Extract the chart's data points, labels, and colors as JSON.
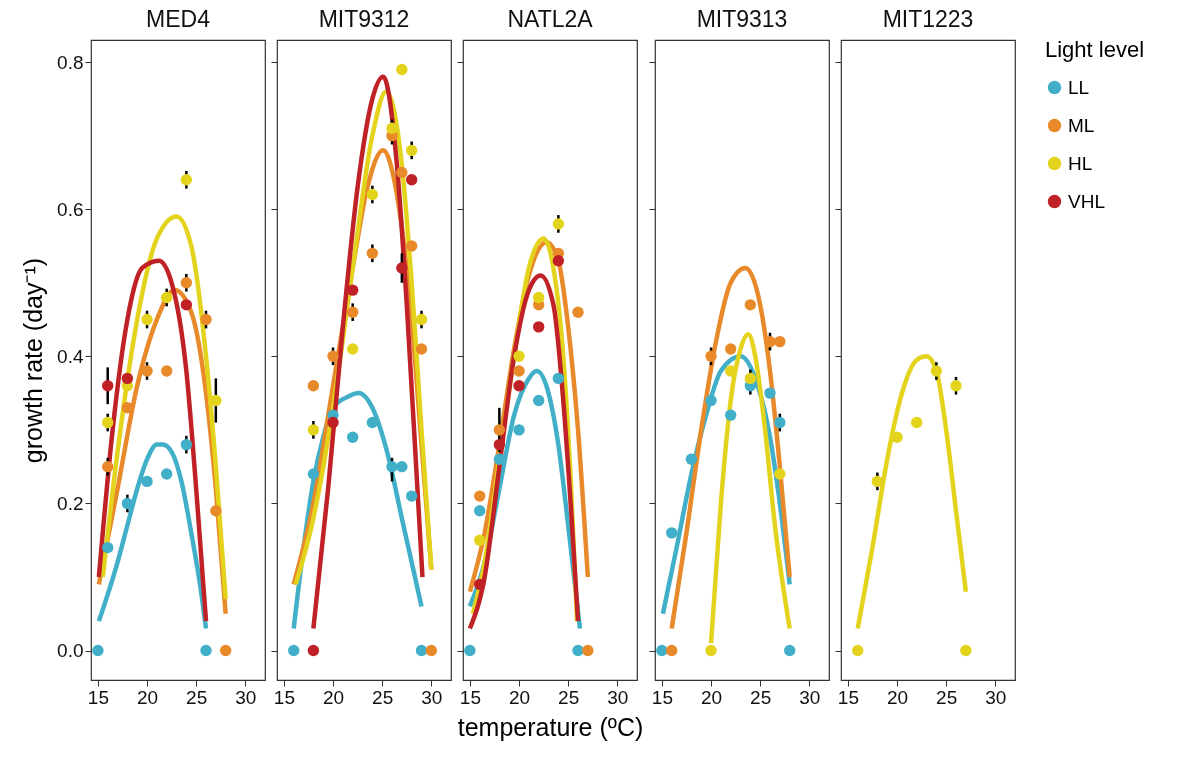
{
  "chart_data": [
    {
      "type": "scatter",
      "title": "MED4",
      "ylabel": "growth rate (day⁻¹)",
      "legend": "right",
      "legend_title": "Light level",
      "xlim": [
        14.3,
        32
      ],
      "xticks": [
        15,
        20,
        25,
        30
      ],
      "ylim": [
        -0.04,
        0.83
      ],
      "yticks": [
        {
          "value": 0,
          "label": "0.0"
        },
        0.2,
        0.4,
        0.6,
        0.8
      ],
      "series": [
        {
          "type": "line",
          "color": "#42afc8",
          "x": [
            15.1,
            17,
            18,
            19,
            20,
            21,
            21.6,
            22.5,
            23.5,
            24.5,
            25.5,
            26
          ],
          "values": [
            0.04,
            0.12,
            0.17,
            0.22,
            0.26,
            0.28,
            0.28,
            0.27,
            0.23,
            0.16,
            0.08,
            0.03
          ]
        },
        {
          "type": "line",
          "color": "#e8892a",
          "x": [
            15.1,
            17,
            19,
            21,
            22.8,
            24.5,
            26,
            27,
            28
          ],
          "values": [
            0.09,
            0.22,
            0.36,
            0.45,
            0.49,
            0.46,
            0.35,
            0.22,
            0.05
          ]
        },
        {
          "type": "line",
          "color": "#e3d31c",
          "x": [
            15.5,
            17,
            19,
            21,
            23,
            24.5,
            26,
            27,
            28
          ],
          "values": [
            0.1,
            0.27,
            0.45,
            0.56,
            0.59,
            0.55,
            0.4,
            0.25,
            0.07
          ]
        },
        {
          "type": "line",
          "color": "#bf2126",
          "x": [
            15.1,
            16.5,
            18,
            19.5,
            21.2,
            22.5,
            24,
            25,
            26
          ],
          "values": [
            0.1,
            0.3,
            0.45,
            0.52,
            0.53,
            0.5,
            0.38,
            0.22,
            0.04
          ]
        },
        {
          "name": "LL",
          "color": "#42afc8",
          "marker": "circle",
          "x": [
            15,
            16,
            18,
            20,
            22,
            24,
            26
          ],
          "values": [
            0,
            0.14,
            0.2,
            0.23,
            0.24,
            0.28,
            0
          ],
          "errors": [
            null,
            null,
            0.012,
            null,
            null,
            0.012,
            null
          ]
        },
        {
          "name": "ML",
          "color": "#e8892a",
          "marker": "circle",
          "x": [
            16,
            18,
            20,
            22,
            24,
            26,
            27,
            28
          ],
          "values": [
            0.25,
            0.33,
            0.38,
            0.38,
            0.5,
            0.45,
            0.19,
            0
          ],
          "errors": [
            0.012,
            null,
            0.012,
            null,
            0.012,
            0.012,
            null,
            null
          ]
        },
        {
          "name": "HL",
          "color": "#e3d31c",
          "marker": "circle",
          "x": [
            16,
            18,
            20,
            22,
            24,
            27
          ],
          "values": [
            0.31,
            0.36,
            0.45,
            0.48,
            0.64,
            0.34
          ],
          "errors": [
            0.012,
            null,
            0.012,
            0.012,
            0.012,
            0.03
          ]
        },
        {
          "name": "VHL",
          "color": "#bf2126",
          "marker": "circle",
          "x": [
            16,
            18,
            24
          ],
          "values": [
            0.36,
            0.37,
            0.47
          ],
          "errors": [
            0.025,
            null,
            null
          ]
        }
      ]
    },
    {
      "type": "scatter",
      "title": "MIT9312",
      "xlim": [
        14.3,
        32
      ],
      "xticks": [
        15,
        20,
        25,
        30
      ],
      "ylim": [
        -0.04,
        0.83
      ],
      "yticks": [
        0,
        0.2,
        0.4,
        0.6,
        0.8
      ],
      "tick_labels": "x",
      "series": [
        {
          "type": "line",
          "color": "#42afc8",
          "x": [
            16,
            17,
            18,
            19,
            20,
            21.5,
            22.6,
            24,
            25.5,
            27,
            28,
            29
          ],
          "values": [
            0.03,
            0.14,
            0.23,
            0.29,
            0.33,
            0.345,
            0.35,
            0.33,
            0.27,
            0.18,
            0.12,
            0.06
          ]
        },
        {
          "type": "line",
          "color": "#e8892a",
          "x": [
            16,
            18,
            20,
            22,
            23.5,
            25.1,
            26.5,
            28,
            29,
            30
          ],
          "values": [
            0.09,
            0.2,
            0.36,
            0.52,
            0.63,
            0.68,
            0.62,
            0.45,
            0.28,
            0.11
          ]
        },
        {
          "type": "line",
          "color": "#e3d31c",
          "x": [
            16.2,
            18,
            20,
            22,
            24,
            25.4,
            27,
            28,
            29,
            30
          ],
          "values": [
            0.09,
            0.18,
            0.33,
            0.52,
            0.7,
            0.76,
            0.66,
            0.5,
            0.3,
            0.11
          ]
        },
        {
          "type": "line",
          "color": "#bf2126",
          "x": [
            18,
            19.5,
            21,
            22.5,
            24,
            25.1,
            26.5,
            27.5,
            28.5,
            29.1
          ],
          "values": [
            0.03,
            0.22,
            0.44,
            0.63,
            0.75,
            0.78,
            0.66,
            0.47,
            0.24,
            0.1
          ]
        },
        {
          "name": "LL",
          "color": "#42afc8",
          "marker": "circle",
          "x": [
            16,
            18,
            20,
            22,
            24,
            26,
            27,
            28,
            29
          ],
          "values": [
            0,
            0.24,
            0.32,
            0.29,
            0.31,
            0.25,
            0.25,
            0.21,
            0
          ],
          "errors": [
            null,
            null,
            null,
            null,
            null,
            [
              0.23,
              0.262
            ],
            null,
            null,
            null
          ]
        },
        {
          "name": "ML",
          "color": "#e8892a",
          "marker": "circle",
          "x": [
            18,
            20,
            22,
            24,
            26,
            27,
            28,
            29,
            30
          ],
          "values": [
            0.36,
            0.4,
            0.46,
            0.54,
            0.7,
            0.65,
            0.55,
            0.41,
            0
          ],
          "errors": [
            null,
            0.012,
            0.012,
            0.012,
            0.012,
            null,
            null,
            null,
            null
          ]
        },
        {
          "name": "HL",
          "color": "#e3d31c",
          "marker": "circle",
          "x": [
            18,
            22,
            24,
            26,
            27,
            28,
            29
          ],
          "values": [
            0.3,
            0.41,
            0.62,
            0.71,
            0.79,
            0.68,
            0.45
          ],
          "errors": [
            0.012,
            null,
            0.012,
            0.012,
            null,
            0.012,
            0.012
          ]
        },
        {
          "name": "VHL",
          "color": "#bf2126",
          "marker": "circle",
          "x": [
            18,
            20,
            22,
            27,
            28
          ],
          "values": [
            0,
            0.31,
            0.49,
            0.52,
            0.64
          ],
          "errors": [
            null,
            null,
            null,
            0.02,
            null
          ]
        }
      ]
    },
    {
      "type": "scatter",
      "title": "NATL2A",
      "xlabel": "temperature (ºC)",
      "xlim": [
        14.3,
        32
      ],
      "xticks": [
        15,
        20,
        25,
        30
      ],
      "ylim": [
        -0.04,
        0.83
      ],
      "yticks": [
        0,
        0.2,
        0.4,
        0.6,
        0.8
      ],
      "tick_labels": "x",
      "series": [
        {
          "type": "line",
          "color": "#42afc8",
          "x": [
            15,
            16.5,
            18,
            19.5,
            21,
            21.8,
            23,
            24,
            25,
            26.2
          ],
          "values": [
            0.06,
            0.12,
            0.22,
            0.32,
            0.37,
            0.38,
            0.35,
            0.28,
            0.17,
            0.03
          ]
        },
        {
          "type": "line",
          "color": "#e8892a",
          "x": [
            15,
            16.5,
            18,
            19.5,
            21,
            22.8,
            24,
            25,
            26,
            27
          ],
          "values": [
            0.08,
            0.16,
            0.28,
            0.41,
            0.51,
            0.555,
            0.53,
            0.44,
            0.3,
            0.1
          ]
        },
        {
          "type": "line",
          "color": "#e3d31c",
          "x": [
            15.3,
            16.5,
            18,
            19.5,
            21,
            22.5,
            23.5,
            24.5,
            25.3,
            25.9
          ],
          "values": [
            0.05,
            0.12,
            0.26,
            0.4,
            0.52,
            0.56,
            0.52,
            0.4,
            0.22,
            0.04
          ]
        },
        {
          "type": "line",
          "color": "#bf2126",
          "x": [
            15,
            16.5,
            18,
            19.5,
            21,
            22.2,
            23.5,
            24.5,
            25.3,
            26
          ],
          "values": [
            0.03,
            0.1,
            0.25,
            0.4,
            0.49,
            0.51,
            0.47,
            0.34,
            0.19,
            0.04
          ]
        },
        {
          "name": "LL",
          "color": "#42afc8",
          "marker": "circle",
          "x": [
            15,
            16,
            18,
            20,
            22,
            24,
            26
          ],
          "values": [
            0,
            0.19,
            0.26,
            0.3,
            0.34,
            0.37,
            0
          ]
        },
        {
          "name": "ML",
          "color": "#e8892a",
          "marker": "circle",
          "x": [
            16,
            18,
            20,
            22,
            24,
            26,
            27
          ],
          "values": [
            0.21,
            0.3,
            0.38,
            0.47,
            0.54,
            0.46,
            0
          ],
          "errors": [
            null,
            0.03,
            null,
            null,
            null,
            null,
            null
          ]
        },
        {
          "name": "HL",
          "color": "#e3d31c",
          "marker": "circle",
          "x": [
            16,
            20,
            22,
            24
          ],
          "values": [
            0.15,
            0.4,
            0.48,
            0.58
          ],
          "errors": [
            null,
            null,
            null,
            0.012
          ]
        },
        {
          "name": "VHL",
          "color": "#bf2126",
          "marker": "circle",
          "x": [
            16,
            18,
            20,
            22,
            24
          ],
          "values": [
            0.09,
            0.28,
            0.36,
            0.44,
            0.53
          ]
        }
      ]
    },
    {
      "type": "scatter",
      "title": "MIT9313",
      "xlim": [
        14.3,
        32
      ],
      "xticks": [
        15,
        20,
        25,
        30
      ],
      "ylim": [
        -0.04,
        0.83
      ],
      "yticks": [
        0,
        0.2,
        0.4,
        0.6,
        0.8
      ],
      "tick_labels": "x",
      "series": [
        {
          "type": "line",
          "color": "#42afc8",
          "x": [
            15.1,
            16.5,
            18,
            19.5,
            21,
            23,
            24.5,
            26,
            27,
            28
          ],
          "values": [
            0.05,
            0.14,
            0.24,
            0.32,
            0.38,
            0.4,
            0.37,
            0.29,
            0.2,
            0.09
          ]
        },
        {
          "type": "line",
          "color": "#e8892a",
          "x": [
            16,
            17.5,
            19,
            20.5,
            22,
            23.5,
            25,
            26,
            27,
            28
          ],
          "values": [
            0.03,
            0.16,
            0.3,
            0.42,
            0.5,
            0.52,
            0.47,
            0.38,
            0.25,
            0.1
          ]
        },
        {
          "type": "line",
          "color": "#e3d31c",
          "x": [
            20,
            21,
            22,
            23,
            23.8,
            24.5,
            25.5,
            26.5,
            28
          ],
          "values": [
            0.01,
            0.2,
            0.34,
            0.41,
            0.43,
            0.4,
            0.3,
            0.17,
            0.03
          ]
        },
        {
          "name": "LL",
          "color": "#42afc8",
          "marker": "circle",
          "x": [
            15,
            16,
            18,
            20,
            22,
            24,
            26,
            27,
            28
          ],
          "values": [
            0,
            0.16,
            0.26,
            0.34,
            0.32,
            0.36,
            0.35,
            0.31,
            0
          ],
          "errors": [
            null,
            null,
            null,
            null,
            null,
            0.012,
            null,
            0.012,
            null
          ]
        },
        {
          "name": "ML",
          "color": "#e8892a",
          "marker": "circle",
          "x": [
            16,
            20,
            22,
            24,
            26,
            27
          ],
          "values": [
            0,
            0.4,
            0.41,
            0.47,
            0.42,
            0.42
          ],
          "errors": [
            null,
            0.012,
            null,
            null,
            0.012,
            null
          ]
        },
        {
          "name": "HL",
          "color": "#e3d31c",
          "marker": "circle",
          "x": [
            20,
            22,
            24,
            27
          ],
          "values": [
            0,
            0.38,
            0.37,
            0.24
          ],
          "errors": [
            null,
            null,
            0.012,
            null
          ]
        }
      ]
    },
    {
      "type": "scatter",
      "title": "MIT1223",
      "xlim": [
        14.3,
        32
      ],
      "xticks": [
        15,
        20,
        25,
        30
      ],
      "ylim": [
        -0.04,
        0.83
      ],
      "yticks": [
        0,
        0.2,
        0.4,
        0.6,
        0.8
      ],
      "tick_labels": "x",
      "series": [
        {
          "type": "line",
          "color": "#e3d31c",
          "x": [
            16,
            17.5,
            19,
            20.5,
            22,
            23,
            24,
            25,
            26,
            27
          ],
          "values": [
            0.03,
            0.14,
            0.26,
            0.35,
            0.395,
            0.4,
            0.38,
            0.3,
            0.19,
            0.08
          ]
        },
        {
          "name": "HL",
          "color": "#e3d31c",
          "marker": "circle",
          "x": [
            16,
            18,
            20,
            22,
            24,
            26,
            27
          ],
          "values": [
            0,
            0.23,
            0.29,
            0.31,
            0.38,
            0.36,
            0
          ],
          "errors": [
            null,
            0.012,
            null,
            null,
            0.012,
            0.012,
            null
          ]
        }
      ]
    }
  ]
}
